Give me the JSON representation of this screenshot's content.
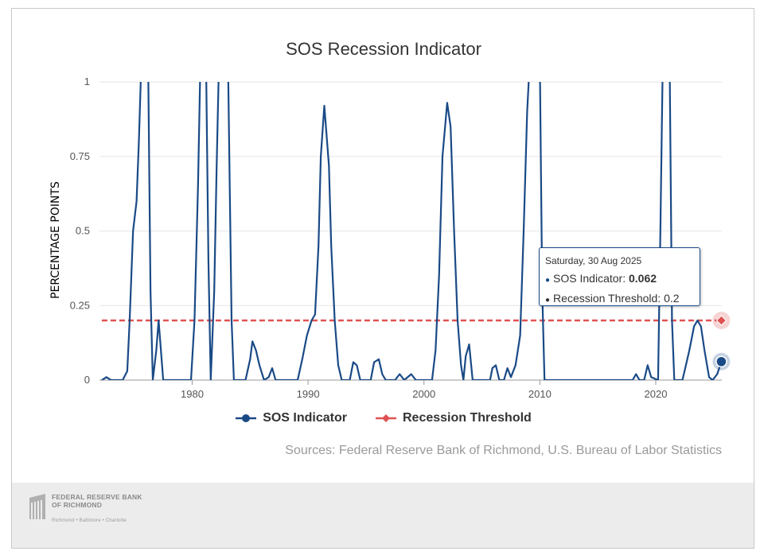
{
  "title": "SOS Recession Indicator",
  "ylabel": "PERCENTAGE POINTS",
  "source": "Sources: Federal Reserve Bank of Richmond, U.S. Bureau of Labor Statistics",
  "legend": {
    "sos": "SOS Indicator",
    "threshold": "Recession Threshold"
  },
  "tooltip": {
    "date": "Saturday, 30 Aug 2025",
    "sos_label": "SOS Indicator: ",
    "sos_value": "0.062",
    "threshold_text": "Recession Threshold: 0.2"
  },
  "logo": {
    "line1": "FEDERAL RESERVE BANK",
    "line2": "OF RICHMOND",
    "tagline": "Richmond • Baltimore • Charlotte"
  },
  "colors": {
    "sos": "#1a4a86",
    "threshold": "#e05252",
    "grid": "#e6e6e6"
  },
  "chart_data": {
    "type": "line",
    "title": "SOS Recession Indicator",
    "ylabel": "PERCENTAGE POINTS",
    "xlabel": "",
    "xlim": [
      1972,
      2025.7
    ],
    "ylim": [
      0,
      1
    ],
    "yticks": [
      0,
      0.25,
      0.5,
      0.75,
      1
    ],
    "yticklabels": [
      "0",
      "0.25",
      "0.5",
      "0.75",
      "1"
    ],
    "xticks": [
      1980,
      1990,
      2000,
      2010,
      2020
    ],
    "xticklabels": [
      "1980",
      "1990",
      "2000",
      "2010",
      "2020"
    ],
    "grid": true,
    "legend_position": "bottom-center",
    "series": [
      {
        "name": "SOS Indicator",
        "color": "#1a4a86",
        "points": [
          [
            1972.2,
            0
          ],
          [
            1972.6,
            0.01
          ],
          [
            1973.0,
            0
          ],
          [
            1974.0,
            0
          ],
          [
            1974.4,
            0.03
          ],
          [
            1974.6,
            0.2
          ],
          [
            1974.9,
            0.5
          ],
          [
            1975.2,
            0.6
          ],
          [
            1975.4,
            0.8
          ],
          [
            1975.6,
            1.05
          ],
          [
            1976.2,
            1.05
          ],
          [
            1976.4,
            0.3
          ],
          [
            1976.6,
            0
          ],
          [
            1976.9,
            0.1
          ],
          [
            1977.1,
            0.2
          ],
          [
            1977.3,
            0.1
          ],
          [
            1977.5,
            0
          ],
          [
            1979.9,
            0
          ],
          [
            1980.2,
            0.2
          ],
          [
            1980.5,
            0.65
          ],
          [
            1980.7,
            1.05
          ],
          [
            1981.2,
            1.05
          ],
          [
            1981.4,
            0.4
          ],
          [
            1981.6,
            0
          ],
          [
            1981.9,
            0.3
          ],
          [
            1982.1,
            0.7
          ],
          [
            1982.3,
            1.05
          ],
          [
            1983.1,
            1.05
          ],
          [
            1983.4,
            0.2
          ],
          [
            1983.6,
            0
          ],
          [
            1984.6,
            0
          ],
          [
            1985.0,
            0.07
          ],
          [
            1985.2,
            0.13
          ],
          [
            1985.5,
            0.1
          ],
          [
            1985.8,
            0.05
          ],
          [
            1986.2,
            0
          ],
          [
            1986.6,
            0.01
          ],
          [
            1986.9,
            0.04
          ],
          [
            1987.2,
            0
          ],
          [
            1989.1,
            0
          ],
          [
            1989.5,
            0.07
          ],
          [
            1989.9,
            0.15
          ],
          [
            1990.3,
            0.2
          ],
          [
            1990.6,
            0.22
          ],
          [
            1990.9,
            0.45
          ],
          [
            1991.1,
            0.75
          ],
          [
            1991.4,
            0.92
          ],
          [
            1991.8,
            0.72
          ],
          [
            1992.0,
            0.45
          ],
          [
            1992.3,
            0.2
          ],
          [
            1992.6,
            0.05
          ],
          [
            1992.9,
            0
          ],
          [
            1993.6,
            0
          ],
          [
            1993.9,
            0.06
          ],
          [
            1994.2,
            0.05
          ],
          [
            1994.5,
            0
          ],
          [
            1995.4,
            0
          ],
          [
            1995.7,
            0.06
          ],
          [
            1996.1,
            0.07
          ],
          [
            1996.4,
            0.02
          ],
          [
            1996.7,
            0
          ],
          [
            1997.5,
            0
          ],
          [
            1997.9,
            0.02
          ],
          [
            1998.3,
            0
          ],
          [
            1998.9,
            0.02
          ],
          [
            1999.3,
            0
          ],
          [
            2000.7,
            0
          ],
          [
            2001.0,
            0.1
          ],
          [
            2001.3,
            0.35
          ],
          [
            2001.6,
            0.75
          ],
          [
            2002.0,
            0.93
          ],
          [
            2002.3,
            0.85
          ],
          [
            2002.6,
            0.5
          ],
          [
            2002.9,
            0.2
          ],
          [
            2003.2,
            0.05
          ],
          [
            2003.4,
            0
          ],
          [
            2003.6,
            0.08
          ],
          [
            2003.9,
            0.12
          ],
          [
            2004.2,
            0
          ],
          [
            2005.7,
            0
          ],
          [
            2005.9,
            0.04
          ],
          [
            2006.2,
            0.05
          ],
          [
            2006.5,
            0
          ],
          [
            2006.9,
            0
          ],
          [
            2007.2,
            0.04
          ],
          [
            2007.5,
            0.01
          ],
          [
            2007.9,
            0.05
          ],
          [
            2008.3,
            0.15
          ],
          [
            2008.6,
            0.5
          ],
          [
            2008.9,
            0.9
          ],
          [
            2009.1,
            1.05
          ],
          [
            2010.0,
            1.05
          ],
          [
            2010.2,
            0.3
          ],
          [
            2010.4,
            0
          ],
          [
            2011.3,
            0
          ],
          [
            2012.0,
            0
          ],
          [
            2014.0,
            0
          ],
          [
            2016.6,
            0
          ],
          [
            2018.0,
            0
          ],
          [
            2018.3,
            0.02
          ],
          [
            2018.6,
            0
          ],
          [
            2019.0,
            0
          ],
          [
            2019.3,
            0.05
          ],
          [
            2019.6,
            0.01
          ],
          [
            2020.2,
            0
          ],
          [
            2020.4,
            0.5
          ],
          [
            2020.6,
            1.05
          ],
          [
            2021.2,
            1.05
          ],
          [
            2021.4,
            0.2
          ],
          [
            2021.6,
            0
          ],
          [
            2022.3,
            0
          ],
          [
            2022.6,
            0.05
          ],
          [
            2022.9,
            0.1
          ],
          [
            2023.3,
            0.18
          ],
          [
            2023.6,
            0.2
          ],
          [
            2023.9,
            0.18
          ],
          [
            2024.2,
            0.1
          ],
          [
            2024.6,
            0.01
          ],
          [
            2024.9,
            0
          ],
          [
            2025.3,
            0.02
          ],
          [
            2025.66,
            0.062
          ]
        ]
      },
      {
        "name": "Recession Threshold",
        "color": "#e05252",
        "points": [
          [
            1972.2,
            0.2
          ],
          [
            2025.66,
            0.2
          ]
        ]
      }
    ],
    "highlighted_point": {
      "x_label": "Saturday, 30 Aug 2025",
      "sos": 0.062,
      "threshold": 0.2
    }
  }
}
